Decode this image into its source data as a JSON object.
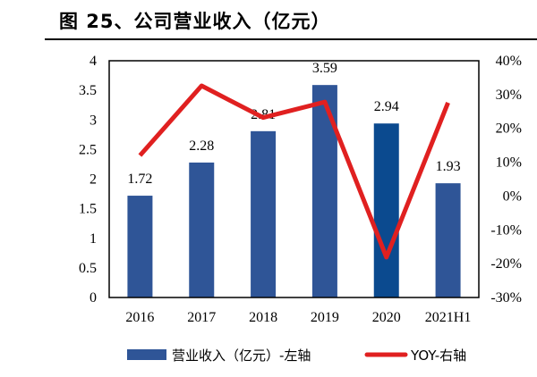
{
  "title": "图 25、公司营业收入（亿元）",
  "chart_data": {
    "type": "bar+line",
    "title": "图 25、公司营业收入（亿元）",
    "categories": [
      "2016",
      "2017",
      "2018",
      "2019",
      "2020",
      "2021H1"
    ],
    "series": [
      {
        "name": "营业收入（亿元）-左轴",
        "type": "bar",
        "axis": "left",
        "values": [
          1.72,
          2.28,
          2.81,
          3.59,
          2.94,
          1.93
        ],
        "color": "#2f5597",
        "highlight_color": "#0b4a8f",
        "highlight_index": 4
      },
      {
        "name": "YOY-右轴",
        "type": "line",
        "axis": "right",
        "values": [
          12,
          32.6,
          23.2,
          27.8,
          -18.1,
          27.6
        ],
        "unit": "%",
        "color": "#e02020"
      }
    ],
    "left_axis": {
      "ylim": [
        0,
        4
      ],
      "ticks": [
        "0",
        "0.5",
        "1",
        "1.5",
        "2",
        "2.5",
        "3",
        "3.5",
        "4"
      ]
    },
    "right_axis": {
      "ylim": [
        -30,
        40
      ],
      "ticks": [
        "-30%",
        "-20%",
        "-10%",
        "0%",
        "10%",
        "20%",
        "30%",
        "40%"
      ]
    },
    "data_labels": [
      "1.72",
      "2.28",
      "2.81",
      "3.59",
      "2.94",
      "1.93"
    ],
    "grid": false,
    "legend_position": "bottom"
  }
}
